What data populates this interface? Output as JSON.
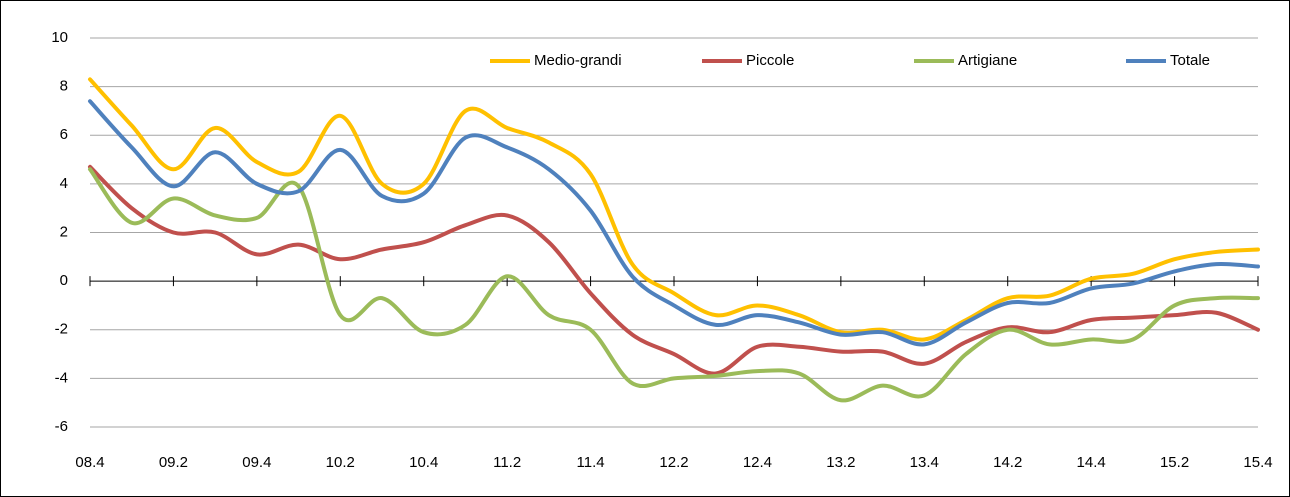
{
  "chart_data": {
    "type": "line",
    "categories": [
      "08.4",
      null,
      "09.2",
      null,
      "09.4",
      null,
      "10.2",
      null,
      "10.4",
      null,
      "11.2",
      null,
      "11.4",
      null,
      "12.2",
      null,
      "12.4",
      null,
      "13.2",
      null,
      "13.4",
      null,
      "14.2",
      null,
      "14.4",
      null,
      "15.2",
      null,
      "15.4"
    ],
    "series": [
      {
        "name": "Medio-grandi",
        "color": "#ffc000",
        "values": [
          8.3,
          6.4,
          4.6,
          6.3,
          4.9,
          4.5,
          6.8,
          4.0,
          4.0,
          7.0,
          6.3,
          5.7,
          4.4,
          0.7,
          -0.5,
          -1.4,
          -1.0,
          -1.4,
          -2.1,
          -2.0,
          -2.4,
          -1.6,
          -0.7,
          -0.6,
          0.1,
          0.3,
          0.9,
          1.2,
          1.3
        ]
      },
      {
        "name": "Piccole",
        "color": "#c0504d",
        "values": [
          4.7,
          3.0,
          2.0,
          2.0,
          1.1,
          1.5,
          0.9,
          1.3,
          1.6,
          2.3,
          2.7,
          1.6,
          -0.5,
          -2.2,
          -3.0,
          -3.8,
          -2.7,
          -2.7,
          -2.9,
          -2.9,
          -3.4,
          -2.5,
          -1.9,
          -2.1,
          -1.6,
          -1.5,
          -1.4,
          -1.3,
          -2.0
        ]
      },
      {
        "name": "Artigiane",
        "color": "#9bbb59",
        "values": [
          4.6,
          2.4,
          3.4,
          2.7,
          2.6,
          3.9,
          -1.4,
          -0.7,
          -2.1,
          -1.8,
          0.2,
          -1.4,
          -2.0,
          -4.2,
          -4.0,
          -3.9,
          -3.7,
          -3.8,
          -4.9,
          -4.3,
          -4.7,
          -3.0,
          -2.0,
          -2.6,
          -2.4,
          -2.4,
          -1.0,
          -0.7,
          -0.7
        ]
      },
      {
        "name": "Totale",
        "color": "#4f81bd",
        "values": [
          7.4,
          5.5,
          3.9,
          5.3,
          4.0,
          3.7,
          5.4,
          3.5,
          3.6,
          5.9,
          5.5,
          4.6,
          2.9,
          0.2,
          -1.0,
          -1.8,
          -1.4,
          -1.7,
          -2.2,
          -2.1,
          -2.6,
          -1.7,
          -0.9,
          -0.9,
          -0.3,
          -0.1,
          0.4,
          0.7,
          0.6
        ]
      }
    ],
    "ylim": [
      -6,
      10
    ],
    "yticks": [
      -6,
      -4,
      -2,
      0,
      2,
      4,
      6,
      8,
      10
    ],
    "grid": true,
    "legend": "top-right"
  }
}
